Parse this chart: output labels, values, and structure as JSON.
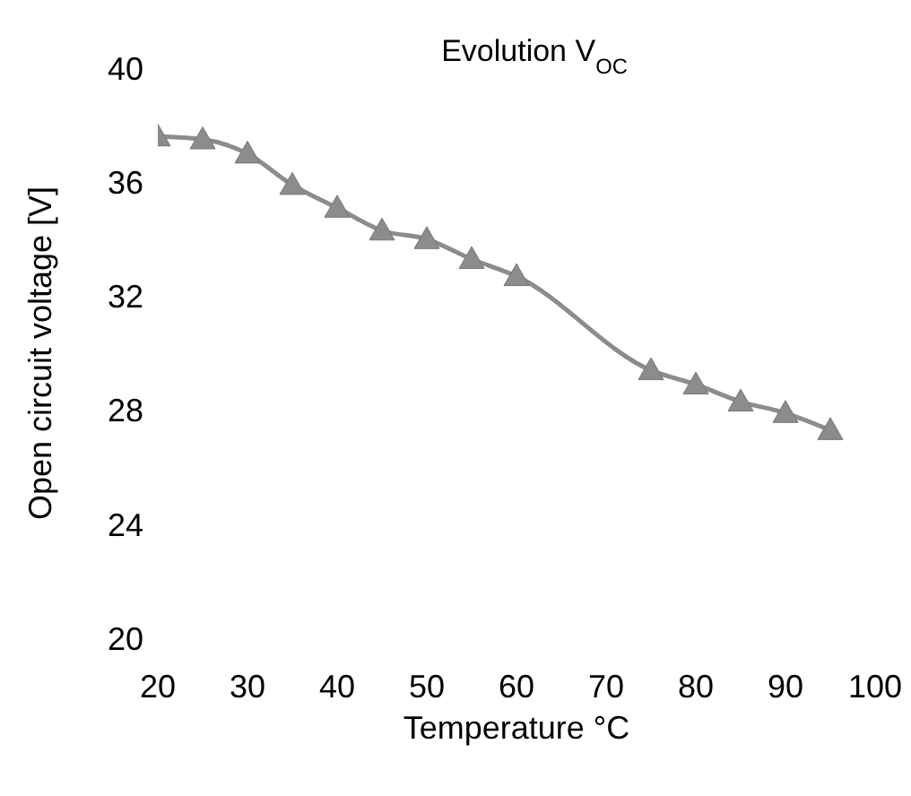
{
  "chart_data": {
    "type": "line",
    "title": "Evolution V$_{OC}$",
    "xlabel": "Temperature °C",
    "ylabel": "Open circuit voltage [V]",
    "x": [
      20,
      25,
      30,
      35,
      40,
      45,
      50,
      55,
      60,
      75,
      80,
      85,
      90,
      95
    ],
    "series": [
      {
        "color": "#8c8c8c",
        "values": [
          37.6,
          37.5,
          37.0,
          35.9,
          35.1,
          34.3,
          34.0,
          33.3,
          32.7,
          29.4,
          28.9,
          28.3,
          27.9,
          27.3
        ]
      }
    ],
    "xlim": [
      20,
      100
    ],
    "xticks": [
      20,
      30,
      40,
      50,
      60,
      70,
      80,
      90,
      100
    ],
    "ylim": [
      20,
      40
    ],
    "yticks": [
      20,
      24,
      28,
      32,
      36,
      40
    ],
    "grid": false,
    "legend": false,
    "marker": "triangle",
    "line_style": "solid"
  }
}
